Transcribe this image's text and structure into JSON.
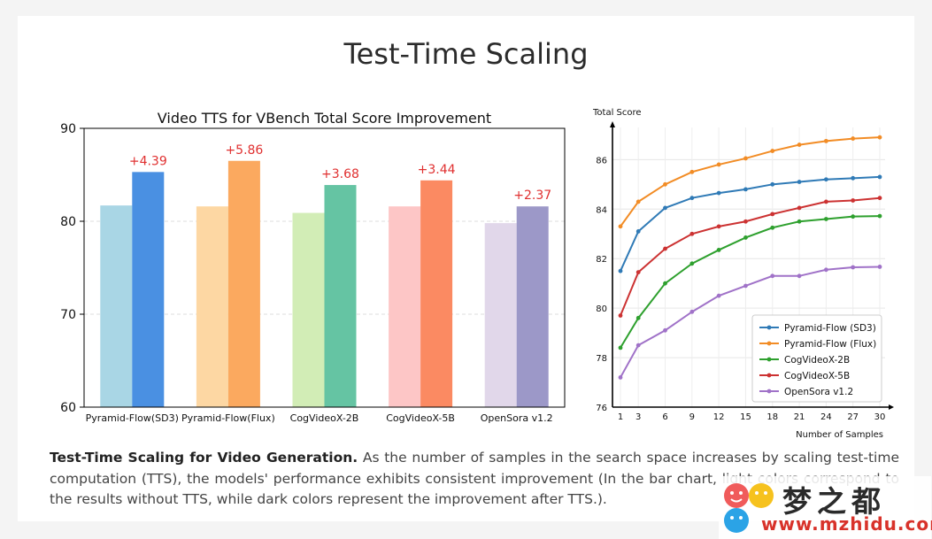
{
  "page": {
    "title": "Test-Time Scaling",
    "caption_bold": "Test-Time Scaling for Video Generation.",
    "caption_text": " As the number of samples in the search space increases by scaling test-time computation (TTS), the models' performance exhibits consistent improvement (In the bar chart, light colors correspond to the results without TTS, while dark colors represent the improvement after TTS.)."
  },
  "watermark": {
    "text": "梦之都",
    "url": "www.mzhidu.com"
  },
  "colors": {
    "light": [
      "#a9d6e5",
      "#fdd7a3",
      "#d2edb6",
      "#fdc6c6",
      "#e1d7ea"
    ],
    "dark": [
      "#4a90e2",
      "#fba95f",
      "#65c4a3",
      "#fb8a62",
      "#9c98c8"
    ],
    "gain_label": "#e03030",
    "lines": [
      "#2f7ab6",
      "#f28c25",
      "#2ea02e",
      "#cc3232",
      "#a072c8"
    ]
  },
  "chart_data": [
    {
      "type": "bar",
      "title": "Video TTS for VBench Total Score Improvement",
      "categories": [
        "Pyramid-Flow(SD3)",
        "Pyramid-Flow(Flux)",
        "CogVideoX-2B",
        "CogVideoX-5B",
        "OpenSora v1.2"
      ],
      "series": [
        {
          "values": [
            81.7,
            81.6,
            80.9,
            81.6,
            79.8
          ]
        },
        {
          "values": [
            85.3,
            86.5,
            83.9,
            84.4,
            81.6
          ]
        }
      ],
      "data_labels": [
        "+4.39",
        "+5.86",
        "+3.68",
        "+3.44",
        "+2.37"
      ],
      "ylim": [
        60,
        90
      ],
      "yticks": [
        60,
        70,
        80,
        90
      ],
      "grid": true
    },
    {
      "type": "line",
      "ylabel": "Total Score",
      "xlabel": "Number of Samples",
      "x": [
        1,
        3,
        6,
        9,
        12,
        15,
        18,
        21,
        24,
        27,
        30
      ],
      "ylim": [
        76,
        87.3
      ],
      "yticks": [
        76,
        78,
        80,
        82,
        84,
        86
      ],
      "legend": "bottom-right",
      "grid": true,
      "series": [
        {
          "name": "Pyramid-Flow (SD3)",
          "values": [
            81.5,
            83.1,
            84.05,
            84.45,
            84.65,
            84.8,
            85.0,
            85.1,
            85.2,
            85.25,
            85.3
          ]
        },
        {
          "name": "Pyramid-Flow (Flux)",
          "values": [
            83.3,
            84.3,
            85.0,
            85.5,
            85.8,
            86.05,
            86.35,
            86.6,
            86.75,
            86.85,
            86.9
          ]
        },
        {
          "name": "CogVideoX-2B",
          "values": [
            78.4,
            79.6,
            81.0,
            81.8,
            82.35,
            82.85,
            83.25,
            83.5,
            83.6,
            83.7,
            83.72
          ]
        },
        {
          "name": "CogVideoX-5B",
          "values": [
            79.7,
            81.45,
            82.4,
            83.0,
            83.3,
            83.5,
            83.8,
            84.05,
            84.3,
            84.35,
            84.45
          ]
        },
        {
          "name": "OpenSora v1.2",
          "values": [
            77.2,
            78.5,
            79.1,
            79.85,
            80.5,
            80.9,
            81.3,
            81.3,
            81.55,
            81.65,
            81.67
          ]
        }
      ]
    }
  ]
}
